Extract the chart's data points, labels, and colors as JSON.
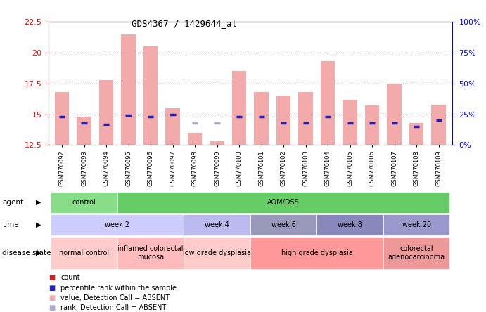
{
  "title": "GDS4367 / 1429644_at",
  "samples": [
    "GSM770092",
    "GSM770093",
    "GSM770094",
    "GSM770095",
    "GSM770096",
    "GSM770097",
    "GSM770098",
    "GSM770099",
    "GSM770100",
    "GSM770101",
    "GSM770102",
    "GSM770103",
    "GSM770104",
    "GSM770105",
    "GSM770106",
    "GSM770107",
    "GSM770108",
    "GSM770109"
  ],
  "bar_heights": [
    16.8,
    14.8,
    17.8,
    21.5,
    20.5,
    15.5,
    13.5,
    12.8,
    18.5,
    16.8,
    16.5,
    16.8,
    19.3,
    16.2,
    15.7,
    17.5,
    14.3,
    15.8
  ],
  "rank_values": [
    14.8,
    14.3,
    14.2,
    14.9,
    14.8,
    15.0,
    14.3,
    14.3,
    14.8,
    14.8,
    14.3,
    14.3,
    14.8,
    14.3,
    14.3,
    14.3,
    14.0,
    14.5
  ],
  "is_absent": [
    false,
    false,
    false,
    false,
    false,
    false,
    true,
    true,
    false,
    false,
    false,
    false,
    false,
    false,
    false,
    false,
    false,
    false
  ],
  "ylim_left": [
    12.5,
    22.5
  ],
  "yticks_left": [
    12.5,
    15.0,
    17.5,
    20.0,
    22.5
  ],
  "ylim_right": [
    0,
    100
  ],
  "yticks_right": [
    0,
    25,
    50,
    75,
    100
  ],
  "bar_color": "#F2AAAA",
  "rank_color": "#2222BB",
  "absent_bar_color": "#F2AAAA",
  "absent_rank_color": "#AAAACC",
  "agent_groups": [
    {
      "label": "control",
      "start": 0,
      "end": 3,
      "color": "#88DD88"
    },
    {
      "label": "AOM/DSS",
      "start": 3,
      "end": 18,
      "color": "#66CC66"
    }
  ],
  "time_groups": [
    {
      "label": "week 2",
      "start": 0,
      "end": 6,
      "color": "#CCCCFF"
    },
    {
      "label": "week 4",
      "start": 6,
      "end": 9,
      "color": "#BBBBEE"
    },
    {
      "label": "week 6",
      "start": 9,
      "end": 12,
      "color": "#9999BB"
    },
    {
      "label": "week 8",
      "start": 12,
      "end": 15,
      "color": "#8888BB"
    },
    {
      "label": "week 20",
      "start": 15,
      "end": 18,
      "color": "#9999CC"
    }
  ],
  "disease_groups": [
    {
      "label": "normal control",
      "start": 0,
      "end": 3,
      "color": "#FFCCCC"
    },
    {
      "label": "inflamed colorectal\nmucosa",
      "start": 3,
      "end": 6,
      "color": "#FFBBBB"
    },
    {
      "label": "low grade dysplasia",
      "start": 6,
      "end": 9,
      "color": "#FFCCCC"
    },
    {
      "label": "high grade dysplasia",
      "start": 9,
      "end": 15,
      "color": "#FF9999"
    },
    {
      "label": "colorectal\nadenocarcinoma",
      "start": 15,
      "end": 18,
      "color": "#EE9999"
    }
  ],
  "legend_items": [
    {
      "color": "#CC2222",
      "label": "count",
      "shape": "square"
    },
    {
      "color": "#2222BB",
      "label": "percentile rank within the sample",
      "shape": "square"
    },
    {
      "color": "#F2AAAA",
      "label": "value, Detection Call = ABSENT",
      "shape": "square"
    },
    {
      "color": "#AAAACC",
      "label": "rank, Detection Call = ABSENT",
      "shape": "square"
    }
  ]
}
